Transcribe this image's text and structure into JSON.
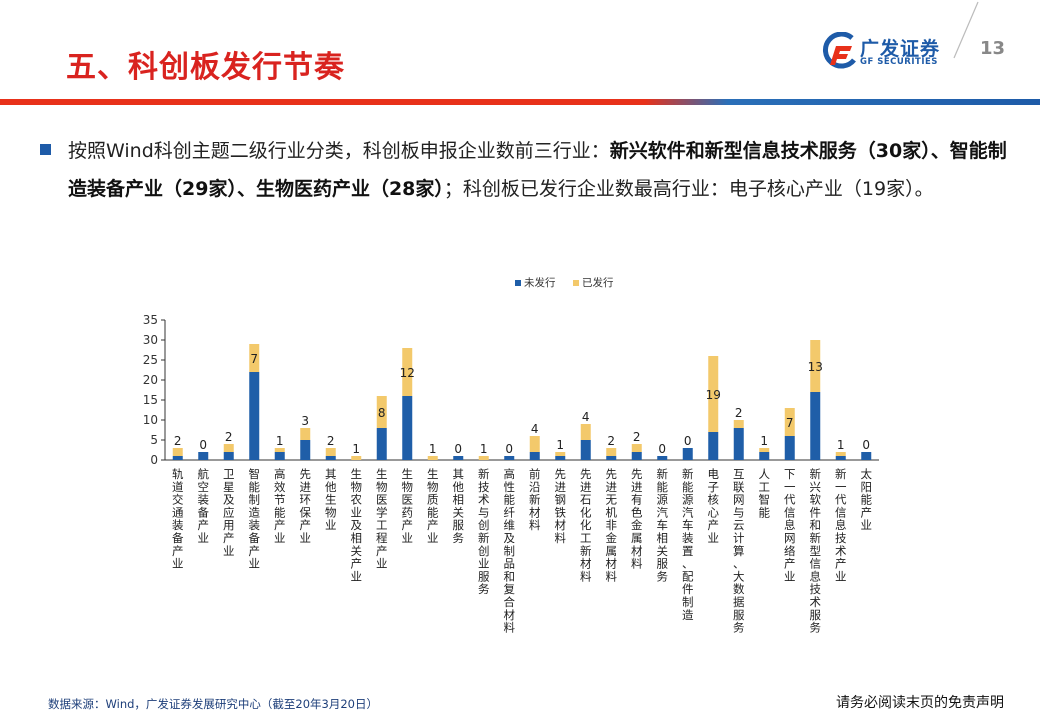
{
  "header": {
    "title": "五、科创板发行节奏",
    "logo_cn": "广发证券",
    "logo_en": "GF SECURITIES",
    "page_number": "13"
  },
  "bullet": {
    "p1": "按照Wind科创主题二级行业分类，科创板申报企业数前三行业：",
    "b1": "新兴软件和新型信息技术服务（30家）、智能制造装备产业（29家）、生物医药产业（28家）",
    "p2": "；科创板已发行企业数最高行业：电子核心产业（19家）。"
  },
  "chart_data": {
    "type": "bar",
    "stacked": true,
    "legend_position": "top-center",
    "ylim": [
      0,
      35
    ],
    "yticks": [
      0,
      5,
      10,
      15,
      20,
      25,
      30,
      35
    ],
    "grid": false,
    "categories": [
      "轨道交通装备产业",
      "航空装备产业",
      "卫星及应用产业",
      "智能制造装备产业",
      "高效节能产业",
      "先进环保产业",
      "其他生物业",
      "生物农业及相关产业",
      "生物医学工程产业",
      "生物医药产业",
      "生物质能产业",
      "其他相关服务",
      "新技术与创新创业服务",
      "高性能纤维及制品和复合材料",
      "前沿新材料",
      "先进钢铁材料",
      "先进石化化工新材料",
      "先进无机非金属材料",
      "先进有色金属材料",
      "新能源汽车相关服务",
      "新能源汽车装置、配件制造",
      "电子核心产业",
      "互联网与云计算、大数据服务",
      "人工智能",
      "下一代信息网络产业",
      "新兴软件和新型信息技术服务",
      "新一代信息技术产业",
      "太阳能产业"
    ],
    "series": [
      {
        "name": "未发行",
        "color": "#1f5ea8",
        "values": [
          1,
          2,
          2,
          22,
          2,
          5,
          1,
          0,
          8,
          16,
          0,
          1,
          0,
          1,
          2,
          1,
          5,
          1,
          2,
          1,
          3,
          7,
          8,
          2,
          6,
          17,
          1,
          2
        ]
      },
      {
        "name": "已发行",
        "color": "#f3c96b",
        "values": [
          2,
          0,
          2,
          7,
          1,
          3,
          2,
          1,
          8,
          12,
          1,
          0,
          1,
          0,
          4,
          1,
          4,
          2,
          2,
          0,
          0,
          19,
          2,
          1,
          7,
          13,
          1,
          0
        ]
      }
    ]
  },
  "footer": {
    "source": "数据来源：Wind，广发证券发展研究中心（截至20年3月20日）",
    "disclaimer": "请务必阅读末页的免责声明"
  }
}
